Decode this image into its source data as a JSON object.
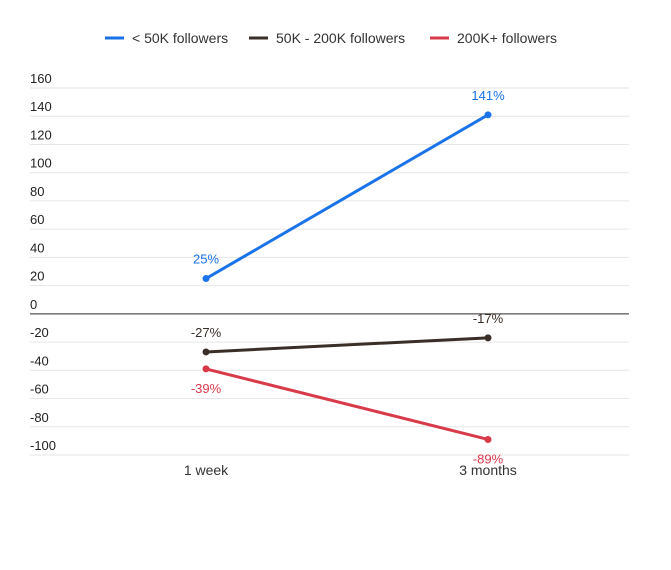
{
  "chart_data": {
    "type": "line",
    "title": "",
    "xlabel": "",
    "ylabel": "",
    "categories": [
      "1 week",
      "3 months"
    ],
    "ylim": [
      -100,
      160
    ],
    "yticks": [
      160,
      140,
      120,
      100,
      80,
      60,
      40,
      20,
      0,
      -20,
      -40,
      -60,
      -80,
      -100
    ],
    "grid": true,
    "legend_position": "top",
    "series": [
      {
        "name": "< 50K followers",
        "values": [
          25,
          141
        ],
        "labels": [
          "25%",
          "141%"
        ],
        "color": "#1a73e8"
      },
      {
        "name": "50K - 200K followers",
        "values": [
          -27,
          -17
        ],
        "labels": [
          "-27%",
          "-17%"
        ],
        "color": "#3a2e28"
      },
      {
        "name": "200K+ followers",
        "values": [
          -39,
          -89
        ],
        "labels": [
          "-39%",
          "-89%"
        ],
        "color": "#d93a4a"
      }
    ]
  }
}
